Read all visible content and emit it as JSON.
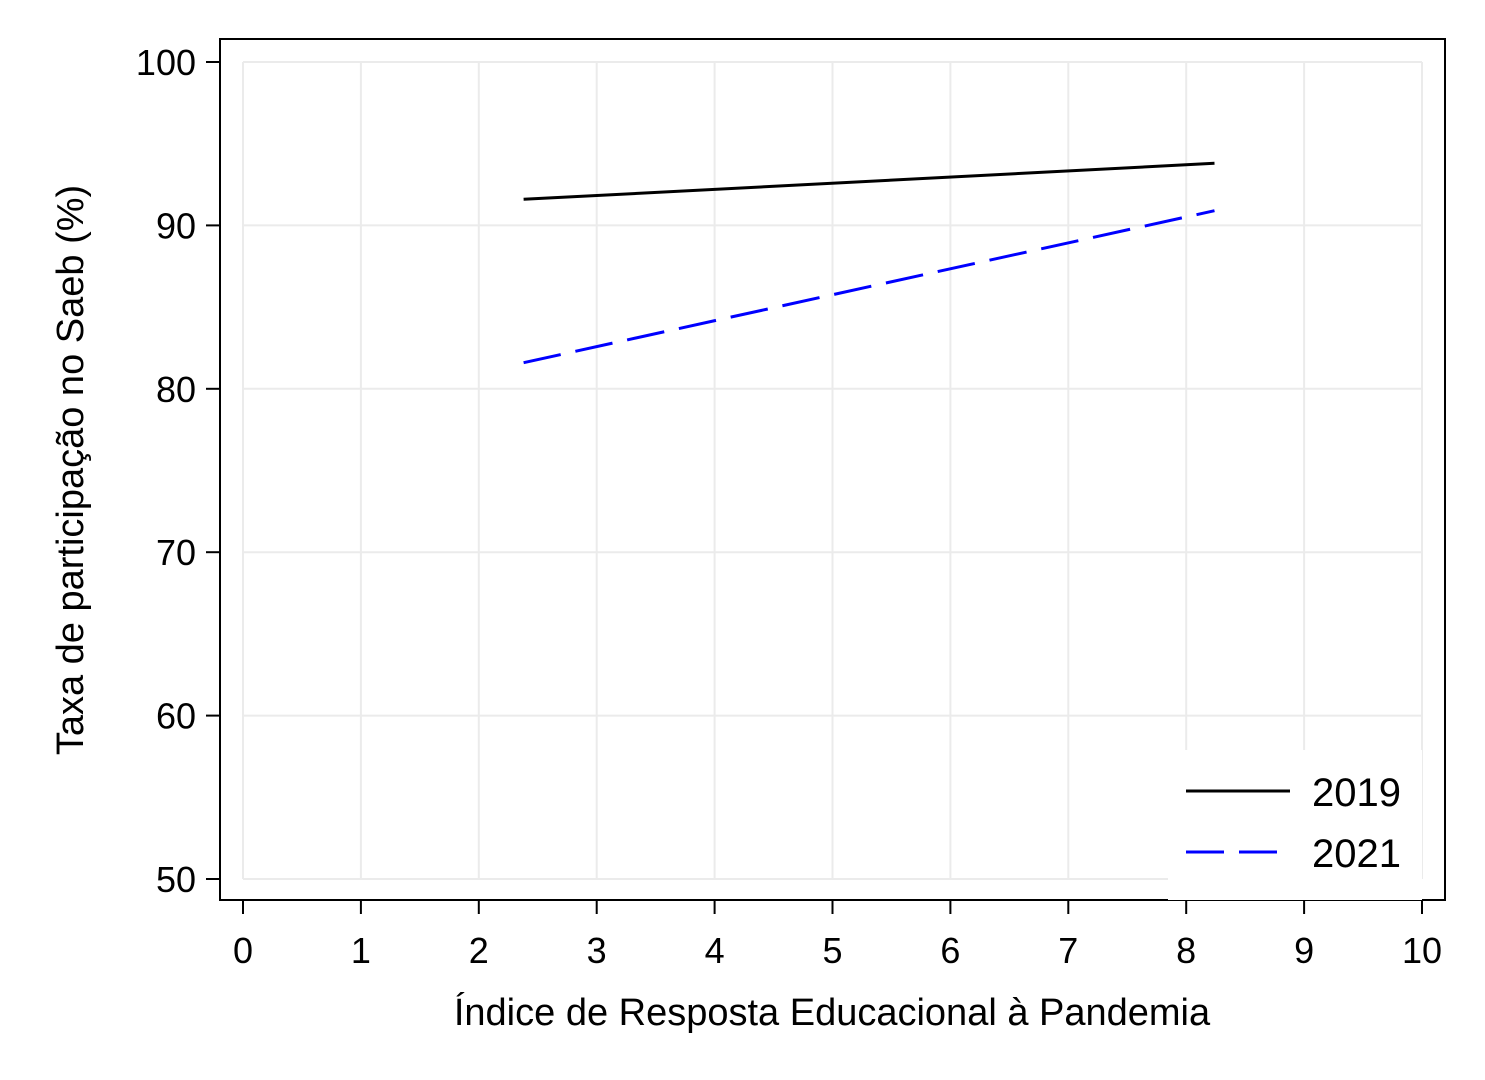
{
  "chart_data": {
    "type": "line",
    "title": "",
    "xlabel": "Índice de Resposta Educacional à Pandemia",
    "ylabel": "Taxa de participação no Saeb (%)",
    "xlim": [
      0,
      10
    ],
    "ylim": [
      50,
      100
    ],
    "xticks": [
      0,
      1,
      2,
      3,
      4,
      5,
      6,
      7,
      8,
      9,
      10
    ],
    "yticks": [
      50,
      60,
      70,
      80,
      90,
      100
    ],
    "grid": true,
    "legend": "bottom-right",
    "series": [
      {
        "name": "2019",
        "color": "#000000",
        "dash": "solid",
        "x": [
          2.38,
          8.24
        ],
        "y": [
          91.6,
          93.8
        ]
      },
      {
        "name": "2021",
        "color": "#0000ff",
        "dash": "dashed",
        "x": [
          2.38,
          8.24
        ],
        "y": [
          81.6,
          90.9
        ]
      }
    ]
  }
}
